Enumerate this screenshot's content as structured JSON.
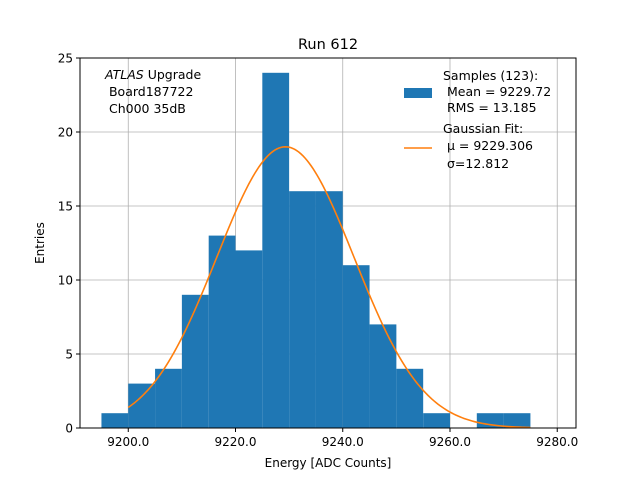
{
  "chart_data": {
    "type": "bar",
    "title": "Run 612",
    "xlabel": "Energy [ADC Counts]",
    "ylabel": "Entries",
    "xlim": [
      9191.0,
      9283.5
    ],
    "ylim": [
      0,
      25
    ],
    "grid": true,
    "bin_edges": [
      9195,
      9200,
      9205,
      9210,
      9215,
      9220,
      9225,
      9230,
      9235,
      9240,
      9245,
      9250,
      9255,
      9260,
      9265,
      9270,
      9275
    ],
    "counts": [
      1,
      3,
      4,
      9,
      13,
      12,
      24,
      16,
      16,
      11,
      7,
      4,
      1,
      0,
      1,
      1
    ],
    "xticks": [
      9200,
      9220,
      9240,
      9260,
      9280
    ],
    "xtick_labels": [
      "9200.0",
      "9220.0",
      "9240.0",
      "9260.0",
      "9280.0"
    ],
    "yticks": [
      0,
      5,
      10,
      15,
      20,
      25
    ],
    "ytick_labels": [
      "0",
      "5",
      "10",
      "15",
      "20",
      "25"
    ],
    "fit": {
      "type": "gaussian",
      "amplitude": 19.0,
      "mu": 9229.306,
      "sigma": 12.812,
      "x_start": 9200,
      "x_end": 9275
    },
    "colors": {
      "bars": "#1f77b4",
      "fit": "#ff7f0e",
      "grid": "#b0b0b0"
    },
    "annotation_lines": [
      {
        "italic": "ATLAS",
        "rest": " Upgrade"
      },
      {
        "italic": "",
        "rest": " Board187722"
      },
      {
        "italic": "",
        "rest": " Ch000 35dB"
      }
    ],
    "legend": {
      "placement": "top-right",
      "samples_lines": [
        "Samples (123):",
        " Mean = 9229.72",
        " RMS = 13.185"
      ],
      "fit_lines": [
        "Gaussian Fit:",
        " μ = 9229.306",
        " σ=12.812"
      ]
    }
  }
}
